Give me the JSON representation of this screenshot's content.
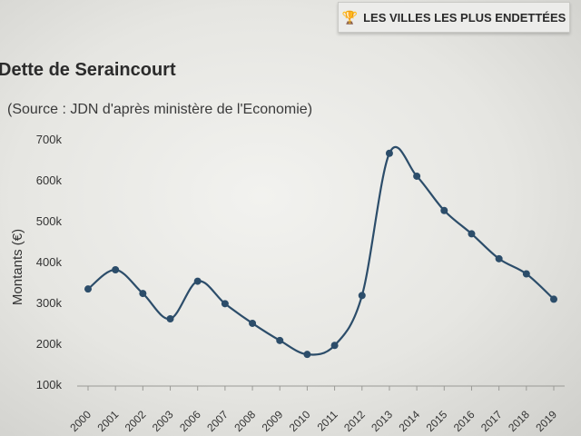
{
  "header": {
    "ranking_button_label": "LES VILLES LES PLUS ENDETTÉES",
    "ranking_button_icon": "trophy-icon"
  },
  "chart_data": {
    "type": "line",
    "title": "Dette de Seraincourt",
    "subtitle": "(Source : JDN d'après ministère de l'Economie)",
    "xlabel": "",
    "ylabel": "Montants (€)",
    "categories": [
      "2000",
      "2001",
      "2002",
      "2003",
      "2006",
      "2007",
      "2008",
      "2009",
      "2010",
      "2011",
      "2012",
      "2013",
      "2014",
      "2015",
      "2016",
      "2017",
      "2018",
      "2019"
    ],
    "series": [
      {
        "values": [
          333000,
          380000,
          322000,
          260000,
          352000,
          297000,
          249000,
          207000,
          173000,
          195000,
          317000,
          665000,
          609000,
          525000,
          468000,
          407000,
          370000,
          308000
        ]
      }
    ],
    "yticks": [
      "100k",
      "200k",
      "300k",
      "400k",
      "500k",
      "600k",
      "700k"
    ],
    "ylim": [
      100000,
      700000
    ],
    "grid": false,
    "line_color": "#2c4d6a",
    "marker_color": "#2c4d6a"
  }
}
